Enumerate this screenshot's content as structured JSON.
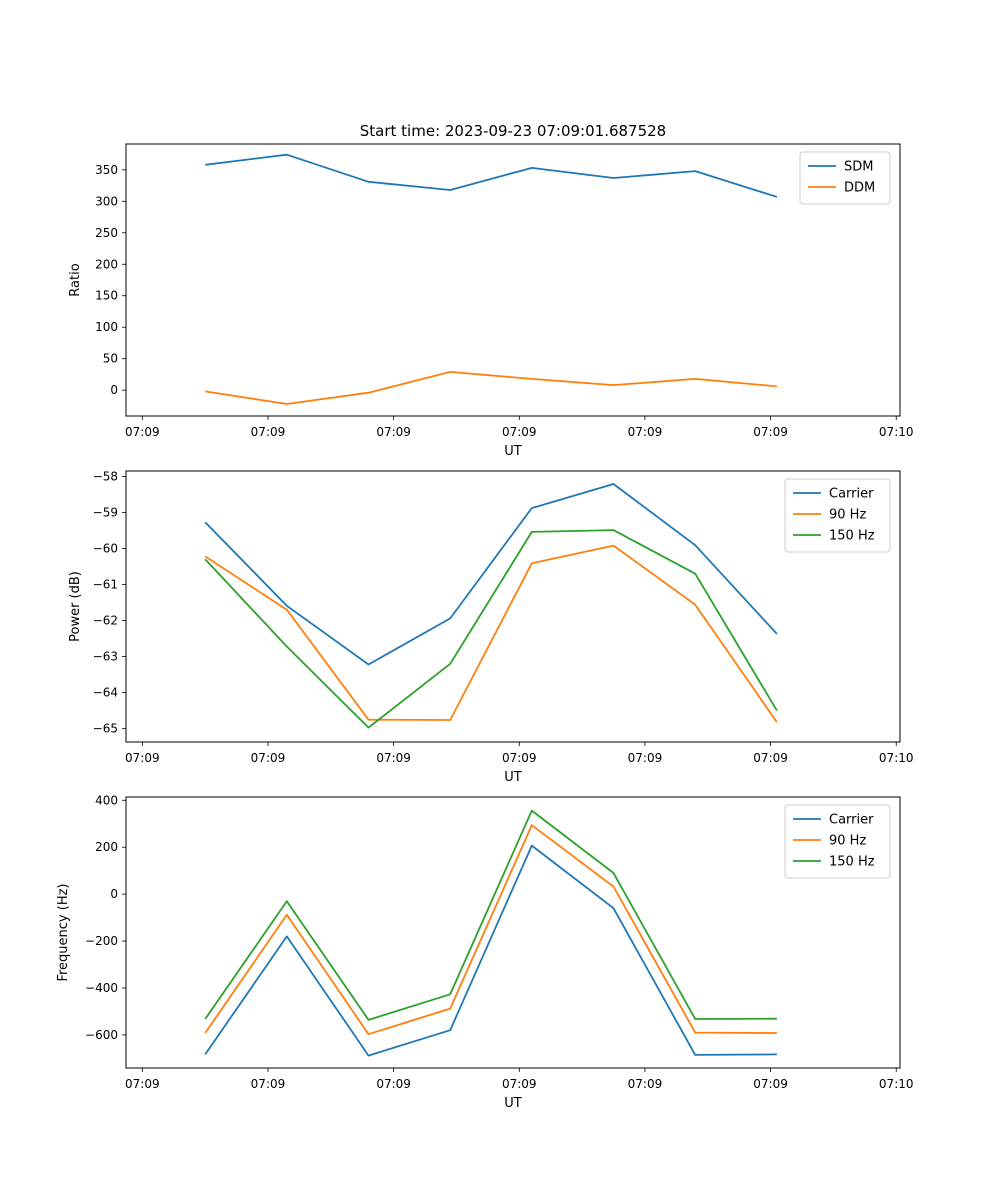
{
  "figure": {
    "title": "Start time: 2023-09-23 07:09:01.687528"
  },
  "chart_data": [
    {
      "type": "line",
      "xlabel": "UT",
      "ylabel": "Ratio",
      "x": [
        0.5,
        1.15,
        1.8,
        2.45,
        3.1,
        3.75,
        4.4,
        5.05
      ],
      "xlim": [
        -0.13,
        6.03
      ],
      "xticks": [
        0,
        1,
        2,
        3,
        4,
        5,
        6
      ],
      "xtick_labels": [
        "07:09",
        "07:09",
        "07:09",
        "07:09",
        "07:09",
        "07:09",
        "07:10"
      ],
      "ylim": [
        -41,
        391
      ],
      "yticks": [
        0,
        50,
        100,
        150,
        200,
        250,
        300,
        350
      ],
      "ytick_labels": [
        "0",
        "50",
        "100",
        "150",
        "200",
        "250",
        "300",
        "350"
      ],
      "legend": "top-right",
      "series": [
        {
          "name": "SDM",
          "color": "#1f77b4",
          "values": [
            358,
            374,
            331,
            318,
            353,
            337,
            348,
            307
          ]
        },
        {
          "name": "DDM",
          "color": "#ff7f0e",
          "values": [
            -2,
            -22,
            -4,
            29,
            18,
            8,
            18,
            6
          ]
        }
      ]
    },
    {
      "type": "line",
      "xlabel": "UT",
      "ylabel": "Power (dB)",
      "x": [
        0.5,
        1.15,
        1.8,
        2.45,
        3.1,
        3.75,
        4.4,
        5.05
      ],
      "xlim": [
        -0.13,
        6.03
      ],
      "xticks": [
        0,
        1,
        2,
        3,
        4,
        5,
        6
      ],
      "xtick_labels": [
        "07:09",
        "07:09",
        "07:09",
        "07:09",
        "07:09",
        "07:09",
        "07:10"
      ],
      "ylim": [
        -65.37,
        -57.85
      ],
      "yticks": [
        -65,
        -64,
        -63,
        -62,
        -61,
        -60,
        -59,
        -58
      ],
      "ytick_labels": [
        "−65",
        "−64",
        "−63",
        "−62",
        "−61",
        "−60",
        "−59",
        "−58"
      ],
      "legend": "top-right",
      "series": [
        {
          "name": "Carrier",
          "color": "#1f77b4",
          "values": [
            -59.27,
            -61.59,
            -63.22,
            -61.94,
            -58.88,
            -58.21,
            -59.91,
            -62.37
          ]
        },
        {
          "name": "90 Hz",
          "color": "#ff7f0e",
          "values": [
            -60.22,
            -61.7,
            -64.75,
            -64.76,
            -60.41,
            -59.92,
            -61.56,
            -64.82
          ]
        },
        {
          "name": "150 Hz",
          "color": "#2ca02c",
          "values": [
            -60.3,
            -62.72,
            -64.97,
            -63.2,
            -59.54,
            -59.49,
            -60.7,
            -64.5
          ]
        }
      ]
    },
    {
      "type": "line",
      "xlabel": "UT",
      "ylabel": "Frequency (Hz)",
      "x": [
        0.5,
        1.15,
        1.8,
        2.45,
        3.1,
        3.75,
        4.4,
        5.05
      ],
      "xlim": [
        -0.13,
        6.03
      ],
      "xticks": [
        0,
        1,
        2,
        3,
        4,
        5,
        6
      ],
      "xtick_labels": [
        "07:09",
        "07:09",
        "07:09",
        "07:09",
        "07:09",
        "07:09",
        "07:10"
      ],
      "ylim": [
        -741,
        414
      ],
      "yticks": [
        -600,
        -400,
        -200,
        0,
        200,
        400
      ],
      "ytick_labels": [
        "−600",
        "−400",
        "−200",
        "0",
        "200",
        "400"
      ],
      "legend": "top-right",
      "series": [
        {
          "name": "Carrier",
          "color": "#1f77b4",
          "values": [
            -683,
            -180,
            -688,
            -580,
            207,
            -60,
            -685,
            -683
          ]
        },
        {
          "name": "90 Hz",
          "color": "#ff7f0e",
          "values": [
            -592,
            -88,
            -597,
            -488,
            294,
            32,
            -590,
            -592
          ]
        },
        {
          "name": "150 Hz",
          "color": "#2ca02c",
          "values": [
            -532,
            -30,
            -536,
            -427,
            356,
            90,
            -532,
            -531
          ]
        }
      ]
    }
  ]
}
